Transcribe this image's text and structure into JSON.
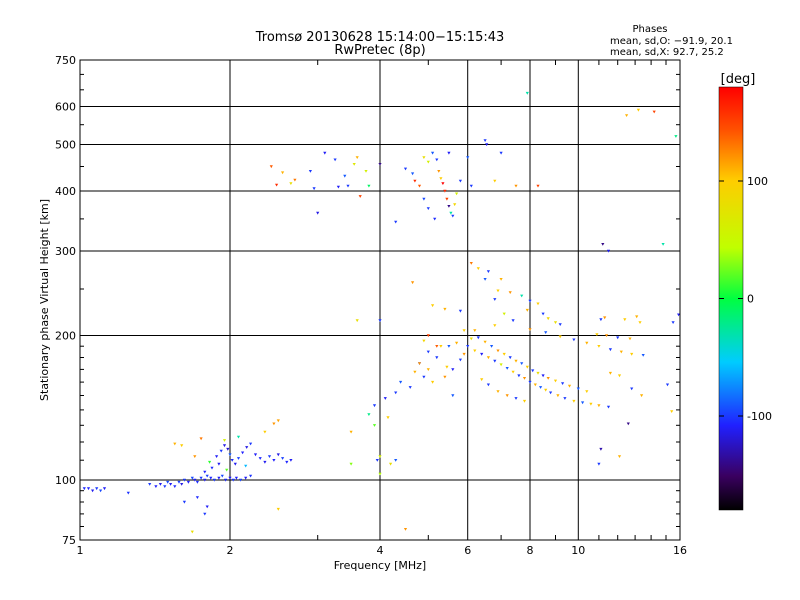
{
  "chart_data": {
    "type": "scatter",
    "title": "Tromsø 20130628 15:14:00−15:15:43",
    "subtitle": "RwPretec (8p)",
    "xlabel": "Frequency [MHz]",
    "ylabel": "Stationary phase Virtual Height [km]",
    "xscale": "log",
    "yscale": "log",
    "xlim": [
      1,
      16
    ],
    "ylim": [
      75,
      750
    ],
    "xticks": [
      1,
      2,
      4,
      6,
      8,
      10,
      16
    ],
    "yticks": [
      75,
      100,
      200,
      300,
      400,
      500,
      600,
      750
    ],
    "grid": true,
    "info": {
      "title": "Phases",
      "line1": "mean, sd,O: −91.9, 20.1",
      "line2": "mean, sd,X:  92.7, 25.2"
    },
    "colorbar": {
      "label": "[deg]",
      "range": [
        -180,
        180
      ],
      "ticks": [
        100,
        0,
        -100
      ]
    },
    "points": [
      [
        1.02,
        96,
        -105
      ],
      [
        1.04,
        96,
        -108
      ],
      [
        1.06,
        95,
        -112
      ],
      [
        1.08,
        96,
        -100
      ],
      [
        1.1,
        95,
        -95
      ],
      [
        1.12,
        96,
        -110
      ],
      [
        1.25,
        94,
        -102
      ],
      [
        1.38,
        98,
        -100
      ],
      [
        1.42,
        97,
        -108
      ],
      [
        1.45,
        98,
        -112
      ],
      [
        1.48,
        97,
        -100
      ],
      [
        1.5,
        99,
        -95
      ],
      [
        1.52,
        98,
        -110
      ],
      [
        1.55,
        97,
        -105
      ],
      [
        1.58,
        99,
        -98
      ],
      [
        1.6,
        98,
        -115
      ],
      [
        1.62,
        100,
        -100
      ],
      [
        1.65,
        99,
        -108
      ],
      [
        1.68,
        101,
        -95
      ],
      [
        1.7,
        100,
        -110
      ],
      [
        1.72,
        99,
        -104
      ],
      [
        1.75,
        101,
        -100
      ],
      [
        1.78,
        100,
        -112
      ],
      [
        1.8,
        102,
        -98
      ],
      [
        1.83,
        101,
        -106
      ],
      [
        1.86,
        100,
        -100
      ],
      [
        1.9,
        101,
        -110
      ],
      [
        1.93,
        102,
        -95
      ],
      [
        1.96,
        100,
        -105
      ],
      [
        2.0,
        101,
        -112
      ],
      [
        2.03,
        100,
        -100
      ],
      [
        2.06,
        101,
        -108
      ],
      [
        2.1,
        100,
        -96
      ],
      [
        2.15,
        101,
        -110
      ],
      [
        2.2,
        102,
        -102
      ],
      [
        1.88,
        112,
        -110
      ],
      [
        1.92,
        115,
        -100
      ],
      [
        1.95,
        118,
        -115
      ],
      [
        1.98,
        116,
        -120
      ],
      [
        2.0,
        113,
        -90
      ],
      [
        2.02,
        110,
        -105
      ],
      [
        2.05,
        108,
        -112
      ],
      [
        2.08,
        111,
        -98
      ],
      [
        2.12,
        114,
        -108
      ],
      [
        2.16,
        117,
        -115
      ],
      [
        2.2,
        119,
        -100
      ],
      [
        2.25,
        113,
        -110
      ],
      [
        2.3,
        111,
        -105
      ],
      [
        2.35,
        109,
        -112
      ],
      [
        2.4,
        112,
        -100
      ],
      [
        2.45,
        110,
        -108
      ],
      [
        2.5,
        113,
        -115
      ],
      [
        2.55,
        111,
        -98
      ],
      [
        2.6,
        109,
        -106
      ],
      [
        2.65,
        110,
        -110
      ],
      [
        1.84,
        106,
        -104
      ],
      [
        1.9,
        108,
        -112
      ],
      [
        1.78,
        104,
        -108
      ],
      [
        1.82,
        109,
        10
      ],
      [
        1.95,
        121,
        60
      ],
      [
        1.97,
        105,
        20
      ],
      [
        2.08,
        123,
        -30
      ],
      [
        2.15,
        107,
        -60
      ],
      [
        1.7,
        112,
        120
      ],
      [
        1.6,
        118,
        100
      ],
      [
        1.55,
        119,
        110
      ],
      [
        1.75,
        122,
        130
      ],
      [
        2.35,
        126,
        100
      ],
      [
        2.45,
        131,
        120
      ],
      [
        2.5,
        133,
        115
      ],
      [
        1.72,
        92,
        -105
      ],
      [
        1.62,
        90,
        -100
      ],
      [
        1.8,
        88,
        -110
      ],
      [
        1.68,
        78,
        80
      ],
      [
        1.78,
        85,
        -100
      ],
      [
        2.5,
        87,
        100
      ],
      [
        2.42,
        450,
        140
      ],
      [
        2.55,
        437,
        110
      ],
      [
        2.65,
        415,
        80
      ],
      [
        2.48,
        412,
        160
      ],
      [
        2.7,
        422,
        130
      ],
      [
        2.9,
        440,
        -100
      ],
      [
        3.1,
        480,
        -110
      ],
      [
        3.25,
        465,
        -100
      ],
      [
        3.4,
        430,
        -90
      ],
      [
        3.55,
        455,
        70
      ],
      [
        3.6,
        470,
        110
      ],
      [
        3.75,
        440,
        60
      ],
      [
        3.8,
        410,
        -10
      ],
      [
        3.65,
        390,
        150
      ],
      [
        3.45,
        410,
        -100
      ],
      [
        3.3,
        408,
        -110
      ],
      [
        3.0,
        360,
        -115
      ],
      [
        2.95,
        405,
        -100
      ],
      [
        4.0,
        455,
        -140
      ],
      [
        4.5,
        445,
        -100
      ],
      [
        4.65,
        435,
        -90
      ],
      [
        4.7,
        420,
        160
      ],
      [
        4.8,
        410,
        140
      ],
      [
        4.9,
        470,
        80
      ],
      [
        5.0,
        460,
        60
      ],
      [
        5.1,
        480,
        -90
      ],
      [
        5.2,
        465,
        -100
      ],
      [
        5.25,
        440,
        120
      ],
      [
        5.3,
        425,
        100
      ],
      [
        5.35,
        415,
        180
      ],
      [
        5.4,
        400,
        160
      ],
      [
        5.45,
        385,
        150
      ],
      [
        5.5,
        372,
        -140
      ],
      [
        5.55,
        360,
        -30
      ],
      [
        5.6,
        355,
        -100
      ],
      [
        5.65,
        375,
        90
      ],
      [
        5.7,
        395,
        60
      ],
      [
        5.5,
        480,
        -110
      ],
      [
        5.8,
        420,
        -100
      ],
      [
        6.0,
        470,
        -90
      ],
      [
        6.1,
        410,
        -100
      ],
      [
        4.3,
        345,
        -100
      ],
      [
        4.9,
        385,
        -95
      ],
      [
        5.0,
        368,
        -100
      ],
      [
        5.15,
        350,
        -105
      ],
      [
        6.5,
        510,
        -100
      ],
      [
        6.55,
        500,
        -110
      ],
      [
        7.0,
        480,
        -100
      ],
      [
        7.5,
        410,
        120
      ],
      [
        6.8,
        420,
        100
      ],
      [
        8.3,
        410,
        150
      ],
      [
        7.9,
        640,
        -30
      ],
      [
        13.2,
        590,
        100
      ],
      [
        14.2,
        585,
        150
      ],
      [
        12.5,
        575,
        110
      ],
      [
        15.7,
        520,
        -20
      ],
      [
        11.2,
        310,
        -140
      ],
      [
        11.5,
        300,
        -110
      ],
      [
        14.8,
        310,
        -30
      ],
      [
        4.65,
        258,
        120
      ],
      [
        5.1,
        231,
        100
      ],
      [
        5.4,
        227,
        110
      ],
      [
        5.8,
        225,
        -100
      ],
      [
        6.1,
        283,
        130
      ],
      [
        6.3,
        276,
        100
      ],
      [
        6.6,
        272,
        -100
      ],
      [
        6.5,
        262,
        -90
      ],
      [
        7.0,
        262,
        110
      ],
      [
        6.9,
        248,
        100
      ],
      [
        7.3,
        246,
        120
      ],
      [
        7.7,
        242,
        -30
      ],
      [
        8.0,
        236,
        -100
      ],
      [
        7.9,
        226,
        110
      ],
      [
        8.5,
        222,
        -100
      ],
      [
        8.7,
        217,
        90
      ],
      [
        9.0,
        213,
        80
      ],
      [
        9.2,
        211,
        -100
      ],
      [
        8.3,
        233,
        100
      ],
      [
        6.8,
        238,
        -100
      ],
      [
        7.1,
        222,
        60
      ],
      [
        5.9,
        205,
        100
      ],
      [
        6.1,
        197,
        80
      ],
      [
        6.3,
        198,
        -100
      ],
      [
        6.5,
        194,
        110
      ],
      [
        6.7,
        190,
        -90
      ],
      [
        6.9,
        186,
        120
      ],
      [
        7.1,
        183,
        100
      ],
      [
        7.3,
        180,
        -100
      ],
      [
        7.5,
        177,
        110
      ],
      [
        7.7,
        175,
        -90
      ],
      [
        7.9,
        172,
        100
      ],
      [
        8.1,
        169,
        -100
      ],
      [
        8.3,
        167,
        80
      ],
      [
        8.5,
        165,
        -110
      ],
      [
        8.7,
        163,
        120
      ],
      [
        9.0,
        161,
        100
      ],
      [
        9.3,
        159,
        -100
      ],
      [
        9.6,
        157,
        110
      ],
      [
        10.0,
        155,
        -90
      ],
      [
        10.4,
        153,
        100
      ],
      [
        6.0,
        190,
        -100
      ],
      [
        6.2,
        186,
        100
      ],
      [
        6.4,
        183,
        -110
      ],
      [
        6.6,
        180,
        110
      ],
      [
        6.8,
        177,
        -100
      ],
      [
        7.0,
        174,
        60
      ],
      [
        7.2,
        171,
        -90
      ],
      [
        7.4,
        168,
        100
      ],
      [
        7.6,
        165,
        -100
      ],
      [
        7.8,
        163,
        120
      ],
      [
        8.0,
        160,
        -100
      ],
      [
        8.2,
        158,
        110
      ],
      [
        8.4,
        156,
        -90
      ],
      [
        8.6,
        154,
        100
      ],
      [
        8.8,
        152,
        -100
      ],
      [
        9.1,
        150,
        110
      ],
      [
        9.4,
        148,
        -100
      ],
      [
        9.8,
        146,
        100
      ],
      [
        10.2,
        145,
        -90
      ],
      [
        10.6,
        144,
        100
      ],
      [
        11.0,
        143,
        110
      ],
      [
        11.5,
        142,
        -100
      ],
      [
        6.2,
        205,
        110
      ],
      [
        6.8,
        210,
        100
      ],
      [
        7.4,
        215,
        -100
      ],
      [
        8.0,
        206,
        120
      ],
      [
        8.6,
        203,
        -90
      ],
      [
        9.2,
        199,
        100
      ],
      [
        9.8,
        196,
        -100
      ],
      [
        10.4,
        193,
        110
      ],
      [
        11.0,
        190,
        100
      ],
      [
        11.6,
        187,
        -100
      ],
      [
        12.2,
        185,
        110
      ],
      [
        12.8,
        183,
        100
      ],
      [
        13.5,
        182,
        -90
      ],
      [
        10.9,
        201,
        100
      ],
      [
        11.4,
        200,
        120
      ],
      [
        12.0,
        198,
        -100
      ],
      [
        12.7,
        197,
        110
      ],
      [
        11.1,
        216,
        -100
      ],
      [
        11.3,
        218,
        120
      ],
      [
        12.4,
        216,
        100
      ],
      [
        13.1,
        219,
        110
      ],
      [
        13.3,
        213,
        100
      ],
      [
        15.5,
        213,
        -100
      ],
      [
        15.9,
        221,
        -110
      ],
      [
        11.6,
        167,
        110
      ],
      [
        12.1,
        165,
        100
      ],
      [
        12.8,
        155,
        -100
      ],
      [
        13.4,
        150,
        110
      ],
      [
        15.1,
        158,
        -100
      ],
      [
        15.4,
        139,
        100
      ],
      [
        12.6,
        131,
        -140
      ],
      [
        11.1,
        116,
        -130
      ],
      [
        11.0,
        108,
        -100
      ],
      [
        12.1,
        112,
        110
      ],
      [
        4.0,
        215,
        -100
      ],
      [
        3.6,
        215,
        80
      ],
      [
        4.8,
        175,
        -100
      ],
      [
        5.0,
        170,
        110
      ],
      [
        4.4,
        160,
        -90
      ],
      [
        4.6,
        156,
        -100
      ],
      [
        4.3,
        152,
        -100
      ],
      [
        4.1,
        148,
        -110
      ],
      [
        3.9,
        143,
        -100
      ],
      [
        4.15,
        135,
        100
      ],
      [
        3.8,
        137,
        -20
      ],
      [
        3.5,
        126,
        110
      ],
      [
        3.9,
        130,
        20
      ],
      [
        4.0,
        112,
        60
      ],
      [
        3.95,
        110,
        -100
      ],
      [
        4.2,
        108,
        80
      ],
      [
        3.5,
        108,
        30
      ],
      [
        4.0,
        103,
        40
      ],
      [
        4.3,
        110,
        -90
      ],
      [
        4.8,
        175,
        120
      ],
      [
        5.0,
        185,
        -100
      ],
      [
        5.3,
        190,
        100
      ],
      [
        5.5,
        190,
        -90
      ],
      [
        5.7,
        193,
        110
      ],
      [
        5.2,
        180,
        -100
      ],
      [
        5.45,
        172,
        100
      ],
      [
        5.6,
        170,
        -110
      ],
      [
        5.4,
        164,
        120
      ],
      [
        5.1,
        160,
        100
      ],
      [
        4.9,
        164,
        -100
      ],
      [
        4.7,
        168,
        110
      ],
      [
        5.8,
        178,
        -100
      ],
      [
        5.9,
        183,
        120
      ],
      [
        5.6,
        150,
        -90
      ],
      [
        6.4,
        162,
        100
      ],
      [
        6.6,
        158,
        -100
      ],
      [
        6.9,
        153,
        110
      ],
      [
        7.2,
        150,
        120
      ],
      [
        7.5,
        148,
        -100
      ],
      [
        7.8,
        146,
        100
      ],
      [
        5.2,
        190,
        140
      ],
      [
        5.0,
        200,
        150
      ],
      [
        4.9,
        195,
        90
      ],
      [
        4.5,
        79,
        120
      ]
    ]
  }
}
